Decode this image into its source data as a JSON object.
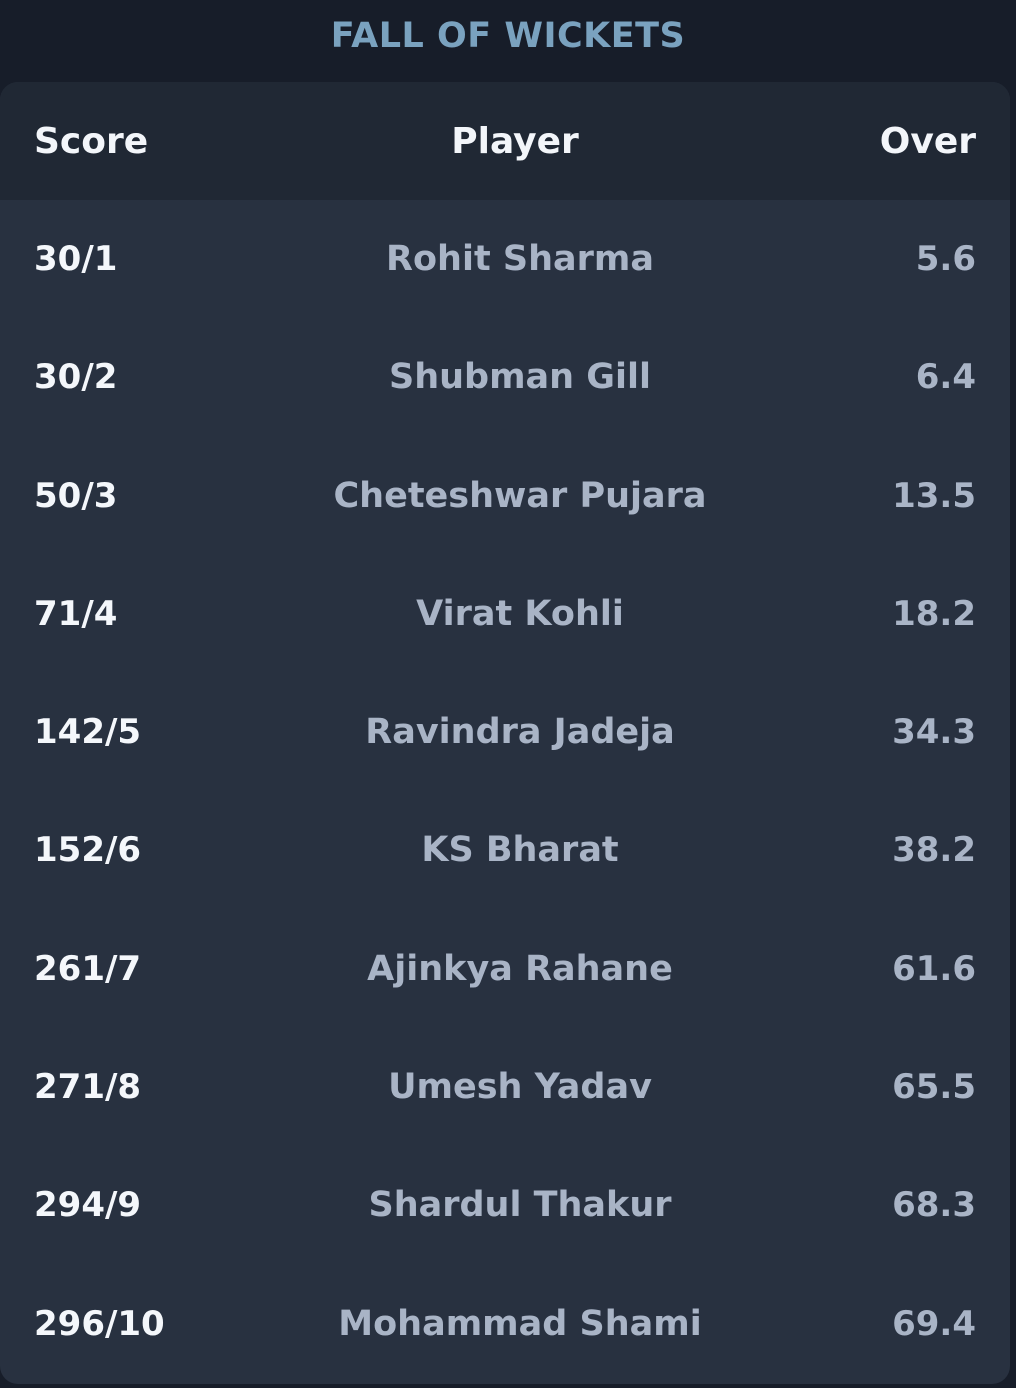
{
  "title": "FALL OF WICKETS",
  "columns": {
    "score": "Score",
    "player": "Player",
    "over": "Over"
  },
  "rows": [
    {
      "score": "30/1",
      "player": "Rohit Sharma",
      "over": "5.6"
    },
    {
      "score": "30/2",
      "player": "Shubman Gill",
      "over": "6.4"
    },
    {
      "score": "50/3",
      "player": "Cheteshwar Pujara",
      "over": "13.5"
    },
    {
      "score": "71/4",
      "player": "Virat Kohli",
      "over": "18.2"
    },
    {
      "score": "142/5",
      "player": "Ravindra Jadeja",
      "over": "34.3"
    },
    {
      "score": "152/6",
      "player": "KS Bharat",
      "over": "38.2"
    },
    {
      "score": "261/7",
      "player": "Ajinkya Rahane",
      "over": "61.6"
    },
    {
      "score": "271/8",
      "player": "Umesh Yadav",
      "over": "65.5"
    },
    {
      "score": "294/9",
      "player": "Shardul Thakur",
      "over": "68.3"
    },
    {
      "score": "296/10",
      "player": "Mohammad Shami",
      "over": "69.4"
    }
  ],
  "colors": {
    "background": "#171d29",
    "panel": "#283140",
    "header": "#202834",
    "title": "#7aa2bf",
    "score_text": "#f4f7fb",
    "muted_text": "#a9b4c6"
  }
}
